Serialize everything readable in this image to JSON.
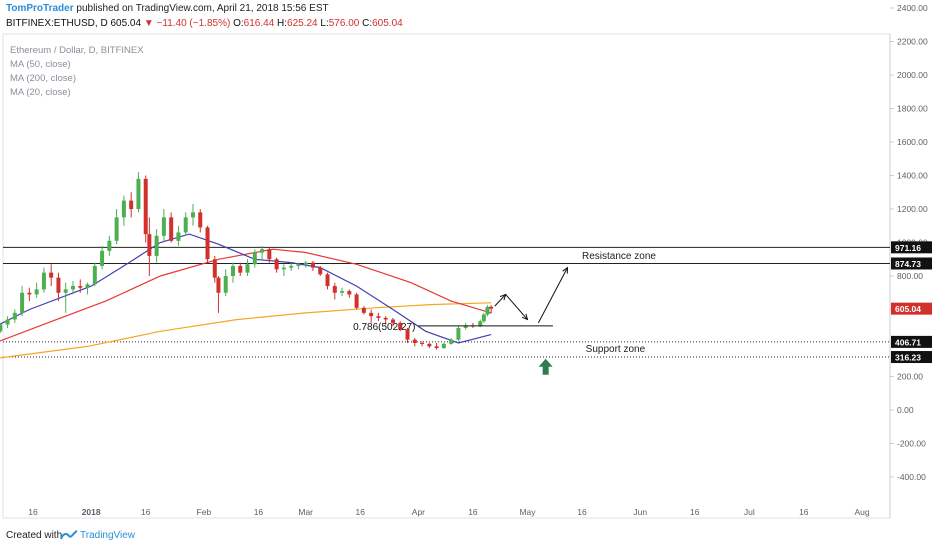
{
  "header": {
    "author": "TomProTrader",
    "published": "published on TradingView.com, April 21, 2018 15:56 EST",
    "symbol": "BITFINEX:ETHUSD, D",
    "last": "605.04",
    "change_arrow": "▼",
    "change": "−11.40 (−1.85%)",
    "open_label": "O:",
    "open": "616.44",
    "high_label": "H:",
    "high": "625.24",
    "low_label": "L:",
    "low": "576.00",
    "close_label": "C:",
    "close": "605.04"
  },
  "legend": {
    "title": "Ethereum / Dollar, D, BITFINEX",
    "ma50": "MA (50, close)",
    "ma200": "MA (200, close)",
    "ma20": "MA (20, close)"
  },
  "footer": {
    "created": "Created with",
    "brand": "TradingView"
  },
  "colors": {
    "up": "#4caf50",
    "down": "#d0312d",
    "ma20": "#3f3fb5",
    "ma50": "#e53935",
    "ma200": "#f5a623",
    "arrow_up": "#2e7d4f",
    "price_badge": "#d0312d"
  },
  "chart_data": {
    "type": "candlestick",
    "ylim": [
      -550,
      2550
    ],
    "yticks": [
      -400,
      -200,
      0,
      200,
      400,
      600,
      800,
      1000,
      1200,
      1400,
      1600,
      1800,
      2000,
      2200,
      2400
    ],
    "xticks": [
      {
        "label": "16",
        "date": "2017-12-16"
      },
      {
        "label": "2018",
        "date": "2018-01-01"
      },
      {
        "label": "16",
        "date": "2018-01-16"
      },
      {
        "label": "Feb",
        "date": "2018-02-01"
      },
      {
        "label": "16",
        "date": "2018-02-16"
      },
      {
        "label": "Mar",
        "date": "2018-03-01"
      },
      {
        "label": "16",
        "date": "2018-03-16"
      },
      {
        "label": "Apr",
        "date": "2018-04-01"
      },
      {
        "label": "16",
        "date": "2018-04-16"
      },
      {
        "label": "May",
        "date": "2018-05-01"
      },
      {
        "label": "16",
        "date": "2018-05-16"
      },
      {
        "label": "Jun",
        "date": "2018-06-01"
      },
      {
        "label": "16",
        "date": "2018-06-16"
      },
      {
        "label": "Jul",
        "date": "2018-07-01"
      },
      {
        "label": "16",
        "date": "2018-07-16"
      },
      {
        "label": "Aug",
        "date": "2018-08-01"
      }
    ],
    "candles": [
      {
        "d": "2017-12-03",
        "o": 465,
        "h": 485,
        "l": 445,
        "c": 460
      },
      {
        "d": "2017-12-05",
        "o": 460,
        "h": 480,
        "l": 440,
        "c": 470
      },
      {
        "d": "2017-12-07",
        "o": 470,
        "h": 520,
        "l": 460,
        "c": 510
      },
      {
        "d": "2017-12-09",
        "o": 510,
        "h": 560,
        "l": 490,
        "c": 540
      },
      {
        "d": "2017-12-11",
        "o": 540,
        "h": 600,
        "l": 520,
        "c": 580
      },
      {
        "d": "2017-12-13",
        "o": 580,
        "h": 740,
        "l": 560,
        "c": 700
      },
      {
        "d": "2017-12-15",
        "o": 700,
        "h": 730,
        "l": 650,
        "c": 690
      },
      {
        "d": "2017-12-17",
        "o": 690,
        "h": 760,
        "l": 670,
        "c": 720
      },
      {
        "d": "2017-12-19",
        "o": 720,
        "h": 850,
        "l": 700,
        "c": 820
      },
      {
        "d": "2017-12-21",
        "o": 820,
        "h": 870,
        "l": 740,
        "c": 790
      },
      {
        "d": "2017-12-23",
        "o": 790,
        "h": 820,
        "l": 650,
        "c": 700
      },
      {
        "d": "2017-12-25",
        "o": 700,
        "h": 760,
        "l": 580,
        "c": 720
      },
      {
        "d": "2017-12-27",
        "o": 720,
        "h": 770,
        "l": 690,
        "c": 740
      },
      {
        "d": "2017-12-29",
        "o": 740,
        "h": 780,
        "l": 700,
        "c": 730
      },
      {
        "d": "2017-12-31",
        "o": 730,
        "h": 760,
        "l": 690,
        "c": 750
      },
      {
        "d": "2018-01-02",
        "o": 750,
        "h": 880,
        "l": 740,
        "c": 860
      },
      {
        "d": "2018-01-04",
        "o": 860,
        "h": 980,
        "l": 840,
        "c": 950
      },
      {
        "d": "2018-01-06",
        "o": 950,
        "h": 1040,
        "l": 920,
        "c": 1010
      },
      {
        "d": "2018-01-08",
        "o": 1010,
        "h": 1200,
        "l": 990,
        "c": 1150
      },
      {
        "d": "2018-01-10",
        "o": 1150,
        "h": 1280,
        "l": 1100,
        "c": 1250
      },
      {
        "d": "2018-01-12",
        "o": 1250,
        "h": 1300,
        "l": 1150,
        "c": 1200
      },
      {
        "d": "2018-01-14",
        "o": 1200,
        "h": 1420,
        "l": 1180,
        "c": 1380
      },
      {
        "d": "2018-01-16",
        "o": 1380,
        "h": 1400,
        "l": 1000,
        "c": 1050
      },
      {
        "d": "2018-01-17",
        "o": 1050,
        "h": 1150,
        "l": 800,
        "c": 920
      },
      {
        "d": "2018-01-19",
        "o": 920,
        "h": 1080,
        "l": 880,
        "c": 1040
      },
      {
        "d": "2018-01-21",
        "o": 1040,
        "h": 1200,
        "l": 1000,
        "c": 1150
      },
      {
        "d": "2018-01-23",
        "o": 1150,
        "h": 1180,
        "l": 1000,
        "c": 1010
      },
      {
        "d": "2018-01-25",
        "o": 1010,
        "h": 1100,
        "l": 980,
        "c": 1060
      },
      {
        "d": "2018-01-27",
        "o": 1060,
        "h": 1180,
        "l": 1040,
        "c": 1150
      },
      {
        "d": "2018-01-29",
        "o": 1150,
        "h": 1230,
        "l": 1100,
        "c": 1180
      },
      {
        "d": "2018-01-31",
        "o": 1180,
        "h": 1200,
        "l": 1060,
        "c": 1090
      },
      {
        "d": "2018-02-02",
        "o": 1090,
        "h": 1100,
        "l": 880,
        "c": 900
      },
      {
        "d": "2018-02-04",
        "o": 900,
        "h": 920,
        "l": 760,
        "c": 790
      },
      {
        "d": "2018-02-05",
        "o": 790,
        "h": 800,
        "l": 580,
        "c": 700
      },
      {
        "d": "2018-02-07",
        "o": 700,
        "h": 840,
        "l": 680,
        "c": 800
      },
      {
        "d": "2018-02-09",
        "o": 800,
        "h": 880,
        "l": 760,
        "c": 860
      },
      {
        "d": "2018-02-11",
        "o": 860,
        "h": 880,
        "l": 800,
        "c": 820
      },
      {
        "d": "2018-02-13",
        "o": 820,
        "h": 900,
        "l": 800,
        "c": 870
      },
      {
        "d": "2018-02-15",
        "o": 870,
        "h": 960,
        "l": 850,
        "c": 940
      },
      {
        "d": "2018-02-17",
        "o": 940,
        "h": 980,
        "l": 900,
        "c": 960
      },
      {
        "d": "2018-02-19",
        "o": 960,
        "h": 970,
        "l": 880,
        "c": 900
      },
      {
        "d": "2018-02-21",
        "o": 900,
        "h": 910,
        "l": 820,
        "c": 840
      },
      {
        "d": "2018-02-23",
        "o": 840,
        "h": 870,
        "l": 800,
        "c": 850
      },
      {
        "d": "2018-02-25",
        "o": 850,
        "h": 880,
        "l": 830,
        "c": 860
      },
      {
        "d": "2018-02-27",
        "o": 860,
        "h": 880,
        "l": 840,
        "c": 870
      },
      {
        "d": "2018-03-01",
        "o": 870,
        "h": 890,
        "l": 850,
        "c": 880
      },
      {
        "d": "2018-03-03",
        "o": 880,
        "h": 890,
        "l": 830,
        "c": 850
      },
      {
        "d": "2018-03-05",
        "o": 850,
        "h": 860,
        "l": 800,
        "c": 810
      },
      {
        "d": "2018-03-07",
        "o": 810,
        "h": 820,
        "l": 720,
        "c": 740
      },
      {
        "d": "2018-03-09",
        "o": 740,
        "h": 760,
        "l": 660,
        "c": 700
      },
      {
        "d": "2018-03-11",
        "o": 700,
        "h": 730,
        "l": 680,
        "c": 710
      },
      {
        "d": "2018-03-13",
        "o": 710,
        "h": 720,
        "l": 670,
        "c": 690
      },
      {
        "d": "2018-03-15",
        "o": 690,
        "h": 700,
        "l": 600,
        "c": 610
      },
      {
        "d": "2018-03-17",
        "o": 610,
        "h": 620,
        "l": 570,
        "c": 580
      },
      {
        "d": "2018-03-19",
        "o": 580,
        "h": 600,
        "l": 520,
        "c": 560
      },
      {
        "d": "2018-03-21",
        "o": 560,
        "h": 580,
        "l": 530,
        "c": 550
      },
      {
        "d": "2018-03-23",
        "o": 550,
        "h": 560,
        "l": 510,
        "c": 540
      },
      {
        "d": "2018-03-25",
        "o": 540,
        "h": 550,
        "l": 500,
        "c": 520
      },
      {
        "d": "2018-03-27",
        "o": 520,
        "h": 530,
        "l": 470,
        "c": 480
      },
      {
        "d": "2018-03-29",
        "o": 480,
        "h": 490,
        "l": 400,
        "c": 420
      },
      {
        "d": "2018-03-31",
        "o": 420,
        "h": 430,
        "l": 380,
        "c": 400
      },
      {
        "d": "2018-04-02",
        "o": 400,
        "h": 410,
        "l": 380,
        "c": 395
      },
      {
        "d": "2018-04-04",
        "o": 395,
        "h": 400,
        "l": 370,
        "c": 380
      },
      {
        "d": "2018-04-06",
        "o": 380,
        "h": 400,
        "l": 360,
        "c": 370
      },
      {
        "d": "2018-04-08",
        "o": 370,
        "h": 400,
        "l": 365,
        "c": 395
      },
      {
        "d": "2018-04-10",
        "o": 395,
        "h": 430,
        "l": 390,
        "c": 420
      },
      {
        "d": "2018-04-12",
        "o": 420,
        "h": 500,
        "l": 410,
        "c": 490
      },
      {
        "d": "2018-04-14",
        "o": 490,
        "h": 520,
        "l": 480,
        "c": 505
      },
      {
        "d": "2018-04-16",
        "o": 505,
        "h": 520,
        "l": 490,
        "c": 500
      },
      {
        "d": "2018-04-18",
        "o": 500,
        "h": 540,
        "l": 495,
        "c": 530
      },
      {
        "d": "2018-04-19",
        "o": 530,
        "h": 580,
        "l": 520,
        "c": 570
      },
      {
        "d": "2018-04-20",
        "o": 570,
        "h": 625,
        "l": 560,
        "c": 616
      },
      {
        "d": "2018-04-21",
        "o": 616.44,
        "h": 625.24,
        "l": 576,
        "c": 605.04
      }
    ],
    "ma20": [
      [
        "2017-12-03",
        470
      ],
      [
        "2017-12-15",
        600
      ],
      [
        "2018-01-01",
        740
      ],
      [
        "2018-01-10",
        860
      ],
      [
        "2018-01-20",
        1000
      ],
      [
        "2018-01-28",
        1050
      ],
      [
        "2018-02-05",
        990
      ],
      [
        "2018-02-15",
        900
      ],
      [
        "2018-02-25",
        880
      ],
      [
        "2018-03-05",
        850
      ],
      [
        "2018-03-15",
        740
      ],
      [
        "2018-03-25",
        600
      ],
      [
        "2018-04-03",
        470
      ],
      [
        "2018-04-12",
        400
      ],
      [
        "2018-04-21",
        450
      ]
    ],
    "ma50": [
      [
        "2017-12-03",
        380
      ],
      [
        "2017-12-20",
        520
      ],
      [
        "2018-01-05",
        650
      ],
      [
        "2018-01-20",
        800
      ],
      [
        "2018-02-05",
        900
      ],
      [
        "2018-02-20",
        960
      ],
      [
        "2018-03-01",
        940
      ],
      [
        "2018-03-15",
        870
      ],
      [
        "2018-03-30",
        760
      ],
      [
        "2018-04-10",
        650
      ],
      [
        "2018-04-21",
        580
      ]
    ],
    "ma200": [
      [
        "2017-12-03",
        300
      ],
      [
        "2017-12-31",
        380
      ],
      [
        "2018-01-20",
        470
      ],
      [
        "2018-02-10",
        540
      ],
      [
        "2018-03-01",
        580
      ],
      [
        "2018-03-20",
        610
      ],
      [
        "2018-04-05",
        630
      ],
      [
        "2018-04-21",
        640
      ]
    ],
    "levels": [
      {
        "value": 971.16,
        "label": "971.16",
        "style": "solid"
      },
      {
        "value": 874.73,
        "label": "874.73",
        "style": "solid"
      },
      {
        "value": 406.71,
        "label": "406.71",
        "style": "dotted"
      },
      {
        "value": 316.23,
        "label": "316.23",
        "style": "dotted"
      }
    ],
    "zones": [
      {
        "label": "Resistance zone",
        "anchor_date": "2018-05-16",
        "value": 925
      },
      {
        "label": "Support zone",
        "anchor_date": "2018-05-17",
        "value": 370
      }
    ],
    "fib": {
      "label": "0.786(502.27)",
      "value": 502.27,
      "start": "2018-04-01",
      "end": "2018-05-08"
    },
    "projection": [
      [
        "2018-04-22",
        620
      ],
      [
        "2018-04-25",
        690
      ],
      [
        "2018-04-25",
        690
      ],
      [
        "2018-05-01",
        540
      ],
      [
        "2018-05-04",
        520
      ],
      [
        "2018-05-12",
        850
      ]
    ],
    "support_arrow": {
      "date": "2018-05-06",
      "value": 270
    },
    "last_price": {
      "value": 605.04,
      "label": "605.04"
    }
  }
}
